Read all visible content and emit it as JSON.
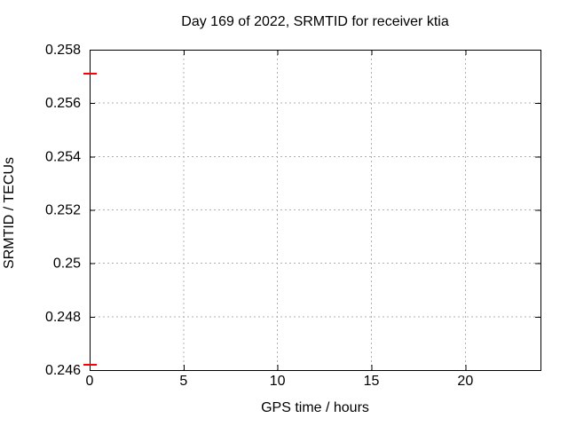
{
  "figure": {
    "title": "Day 169 of 2022, SRMTID for receiver ktia",
    "xlabel": "GPS time / hours",
    "ylabel": "SRMTID / TECUs"
  },
  "chart_data": {
    "type": "scatter",
    "title": "Day 169 of 2022, SRMTID for receiver ktia",
    "xlabel": "GPS time / hours",
    "ylabel": "SRMTID / TECUs",
    "xlim": [
      0,
      24
    ],
    "ylim": [
      0.246,
      0.258
    ],
    "xticks": {
      "values": [
        0,
        5,
        10,
        15,
        20
      ],
      "labels": [
        "0",
        "5",
        "10",
        "15",
        "20"
      ]
    },
    "yticks": {
      "values": [
        0.246,
        0.248,
        0.25,
        0.252,
        0.254,
        0.256,
        0.258
      ],
      "labels": [
        "0.246",
        "0.248",
        "0.25",
        "0.252",
        "0.254",
        "0.256",
        "0.258"
      ]
    },
    "grid": true,
    "legend_position": "none",
    "series": [
      {
        "name": "SRMTID",
        "marker": "horizontal-dash",
        "color": "#ff0000",
        "points": [
          {
            "x": 0,
            "y": 0.2571
          },
          {
            "x": 0,
            "y": 0.2462
          }
        ]
      }
    ],
    "colors": {
      "background": "#ffffff",
      "axis": "#000000",
      "grid": "#b0b0b0",
      "text": "#000000",
      "marker": "#ff0000"
    }
  }
}
